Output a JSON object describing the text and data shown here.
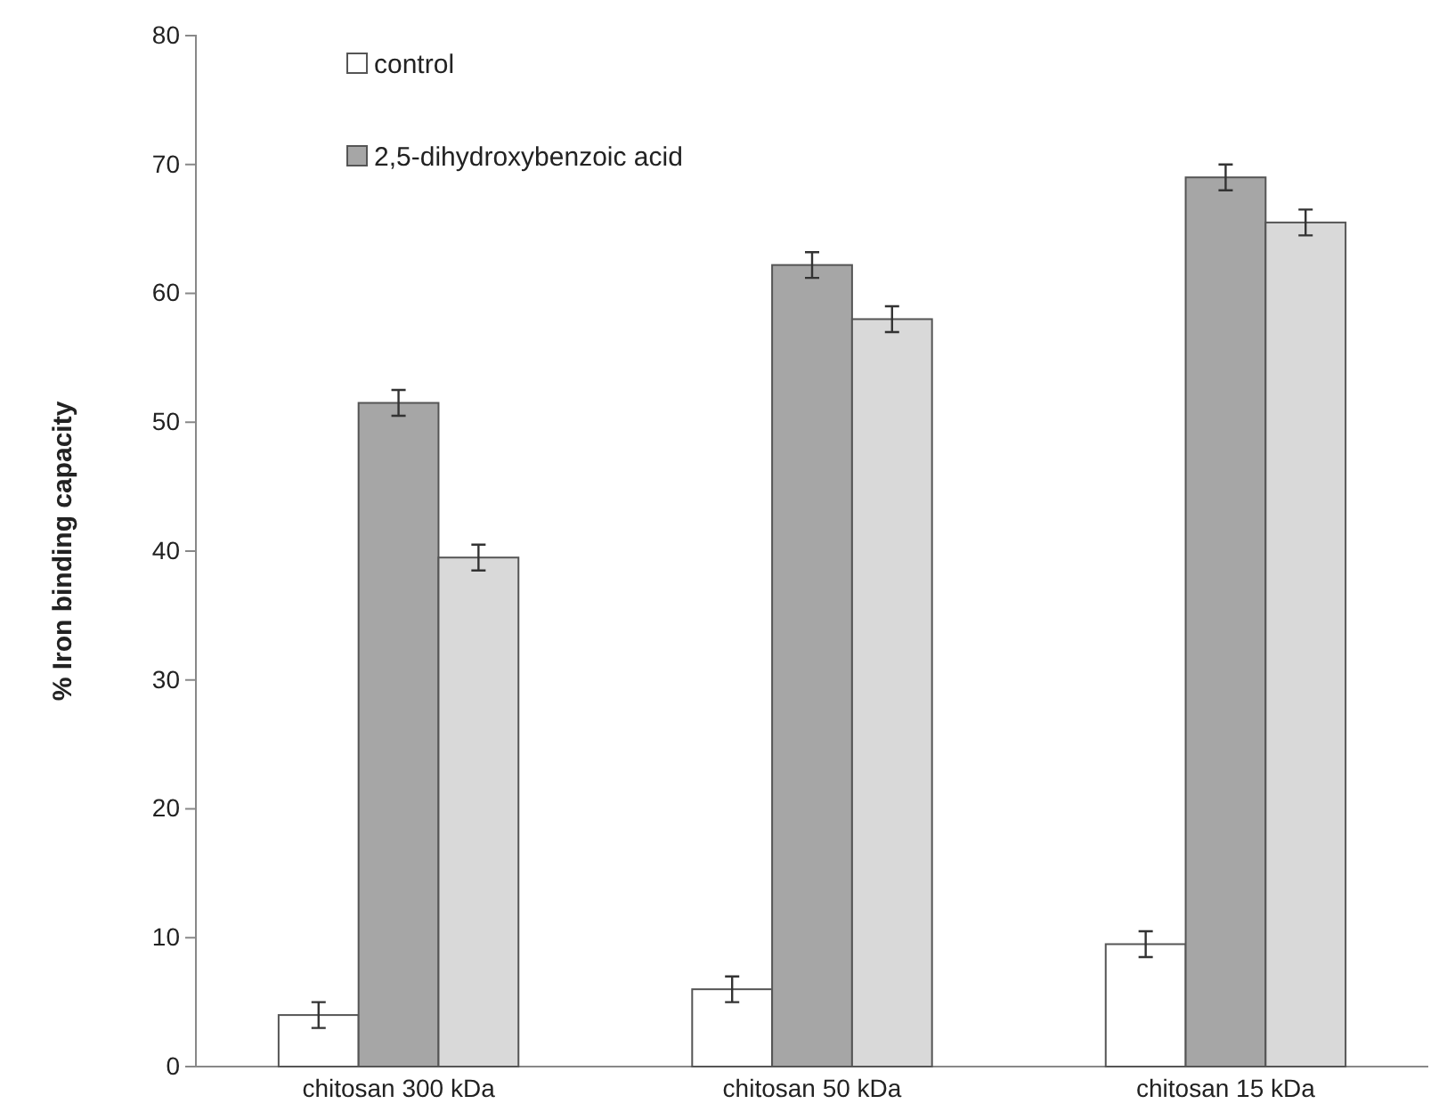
{
  "chart_data": {
    "type": "bar",
    "ylabel": "% Iron binding capacity",
    "categories": [
      "chitosan 300 kDa",
      "chitosan 50 kDa",
      "chitosan 15 kDa"
    ],
    "series": [
      {
        "name": "control",
        "color": "#ffffff",
        "values": [
          4,
          6,
          9.5
        ],
        "errors": [
          1,
          1,
          1
        ]
      },
      {
        "name": "2,5-dihydroxybenzoic acid",
        "color": "#a6a6a6",
        "values": [
          51.5,
          62.2,
          69
        ],
        "errors": [
          1,
          1,
          1
        ]
      },
      {
        "color": "#d9d9d9",
        "values": [
          39.5,
          58,
          65.5
        ],
        "errors": [
          1,
          1,
          1
        ]
      }
    ],
    "ylim": [
      0,
      80
    ],
    "yticks": [
      0,
      10,
      20,
      30,
      40,
      50,
      60,
      70,
      80
    ],
    "legend": "top left"
  }
}
